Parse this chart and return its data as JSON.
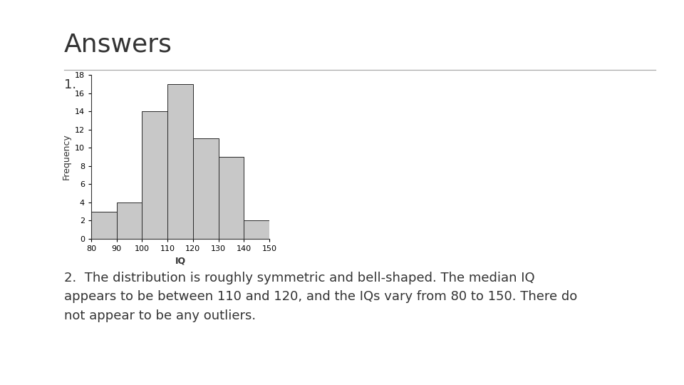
{
  "title": "Answers",
  "label_1": "1.",
  "label_2": "2.  The distribution is roughly symmetric and bell-shaped. The median IQ\nappears to be between 110 and 120, and the IQs vary from 80 to 150. There do\nnot appear to be any outliers.",
  "hist_bins": [
    80,
    90,
    100,
    110,
    120,
    130,
    140,
    150
  ],
  "hist_values": [
    3,
    4,
    14,
    17,
    11,
    9,
    2
  ],
  "bar_color": "#c8c8c8",
  "bar_edgecolor": "#2a2a2a",
  "xlabel": "IQ",
  "ylabel": "Frequency",
  "ylim": [
    0,
    18
  ],
  "yticks": [
    0,
    2,
    4,
    6,
    8,
    10,
    12,
    14,
    16,
    18
  ],
  "xticks": [
    80,
    90,
    100,
    110,
    120,
    130,
    140,
    150
  ],
  "bottom_bar_color": "#1a8ec0",
  "bottom_bar_height": 0.072,
  "title_fontsize": 26,
  "label_1_fontsize": 13,
  "label_2_fontsize": 13,
  "axis_label_fontsize": 9,
  "ylabel_fontsize": 9,
  "tick_fontsize": 8,
  "text_color": "#333333",
  "separator_color": "#aaaaaa",
  "background_color": "#ffffff"
}
